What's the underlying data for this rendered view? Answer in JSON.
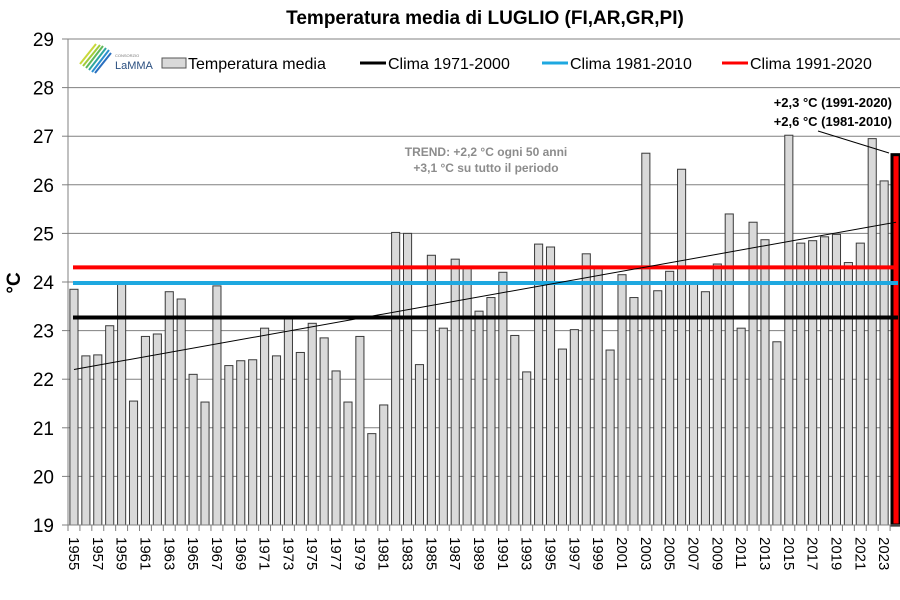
{
  "chart_data": {
    "type": "bar",
    "title": "Temperatura media di LUGLIO (FI,AR,GR,PI)",
    "xlabel": "",
    "ylabel": "°C",
    "ylim": [
      19,
      29
    ],
    "yticks": [
      "19",
      "20",
      "21",
      "22",
      "23",
      "24",
      "25",
      "26",
      "27",
      "28",
      "29"
    ],
    "grid": true,
    "legend_position": "top",
    "categories": [
      1955,
      1956,
      1957,
      1958,
      1959,
      1960,
      1961,
      1962,
      1963,
      1964,
      1965,
      1966,
      1967,
      1968,
      1969,
      1970,
      1971,
      1972,
      1973,
      1974,
      1975,
      1976,
      1977,
      1978,
      1979,
      1980,
      1981,
      1982,
      1983,
      1984,
      1985,
      1986,
      1987,
      1988,
      1989,
      1990,
      1991,
      1992,
      1993,
      1994,
      1995,
      1996,
      1997,
      1998,
      1999,
      2000,
      2001,
      2002,
      2003,
      2004,
      2005,
      2006,
      2007,
      2008,
      2009,
      2010,
      2011,
      2012,
      2013,
      2014,
      2015,
      2016,
      2017,
      2018,
      2019,
      2020,
      2021,
      2022,
      2023,
      2024
    ],
    "xtick_labels": [
      "1955",
      "1957",
      "1959",
      "1961",
      "1963",
      "1965",
      "1967",
      "1969",
      "1971",
      "1973",
      "1975",
      "1977",
      "1979",
      "1981",
      "1983",
      "1985",
      "1987",
      "1989",
      "1991",
      "1993",
      "1995",
      "1997",
      "1999",
      "2001",
      "2003",
      "2005",
      "2007",
      "2009",
      "2011",
      "2013",
      "2015",
      "2017",
      "2019",
      "2021",
      "2023"
    ],
    "series": [
      {
        "name": "Temperatura media",
        "kind": "bar",
        "color": "#d9d9d9",
        "edge_color": "#000000",
        "highlight_last": {
          "fill": "#ff0000",
          "edge": "#000000"
        },
        "values": [
          23.85,
          22.48,
          22.5,
          23.1,
          23.95,
          21.55,
          22.88,
          22.93,
          23.8,
          23.65,
          22.1,
          21.53,
          23.92,
          22.28,
          22.38,
          22.4,
          23.05,
          22.48,
          23.25,
          22.55,
          23.15,
          22.85,
          22.17,
          21.53,
          22.88,
          20.88,
          21.47,
          25.02,
          25.0,
          22.3,
          24.55,
          23.05,
          24.47,
          24.3,
          23.4,
          23.68,
          24.2,
          22.9,
          22.15,
          24.78,
          24.72,
          22.62,
          23.02,
          24.58,
          24.3,
          22.6,
          24.15,
          23.68,
          26.65,
          23.82,
          24.22,
          26.32,
          23.98,
          23.8,
          24.37,
          25.4,
          23.05,
          25.23,
          24.87,
          22.77,
          27.02,
          24.8,
          24.85,
          24.93,
          24.98,
          24.4,
          24.8,
          26.95,
          26.08,
          26.62
        ]
      },
      {
        "name": "Clima 1971-2000",
        "kind": "hline",
        "color": "#000000",
        "value": 23.27
      },
      {
        "name": "Clima 1981-2010",
        "kind": "hline",
        "color": "#1ea8e0",
        "value": 23.98
      },
      {
        "name": "Clima 1991-2020",
        "kind": "hline",
        "color": "#ff0000",
        "value": 24.3
      },
      {
        "name": "Trend",
        "kind": "trendline",
        "color": "#000000",
        "start": {
          "year": 1955,
          "value": 22.2
        },
        "end": {
          "year": 2024,
          "value": 25.23
        }
      }
    ],
    "annotations": {
      "trend_line1": "TREND: +2,2 °C ogni 50 anni",
      "trend_line2": "+3,1 °C su tutto il periodo",
      "anomaly_line1": "+2,3 °C (1991-2020)",
      "anomaly_line2": "+2,6 °C (1981-2010)"
    },
    "logo": {
      "small_text": "CONSORZIO",
      "main_text": "LaMMA"
    }
  }
}
